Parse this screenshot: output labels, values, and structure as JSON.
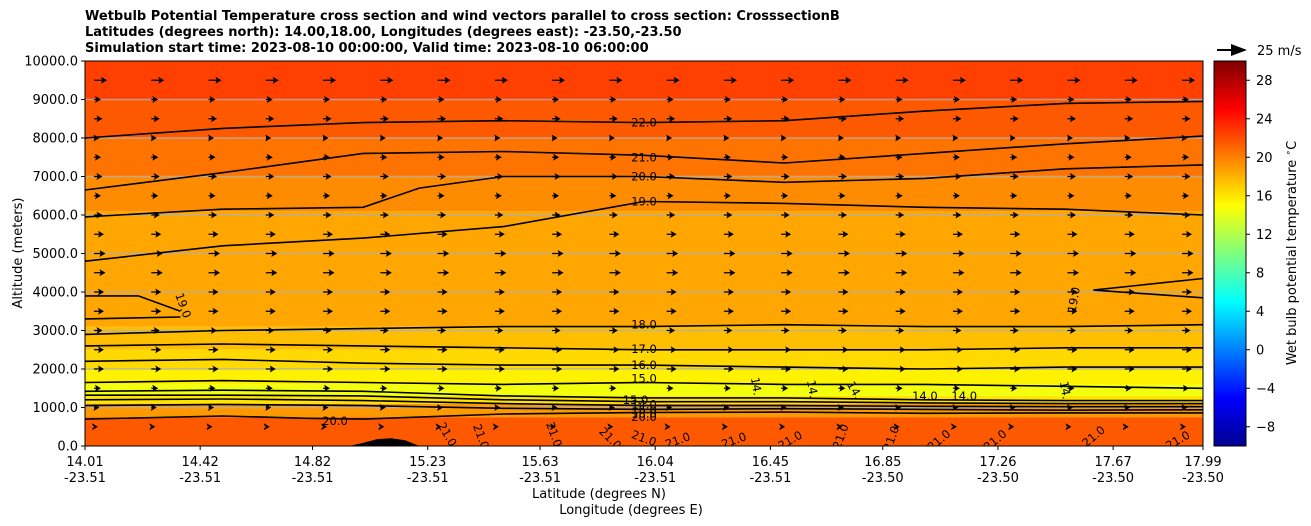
{
  "titles": [
    "Wetbulb Potential Temperature cross section and wind vectors parallel to cross section: CrosssectionB",
    "Latitudes (degrees north): 14.00,18.00, Longitudes (degrees east): -23.50,-23.50",
    "Simulation start time: 2023-08-10 00:00:00, Valid time: 2023-08-10 06:00:00"
  ],
  "chart_data": {
    "type": "heatmap",
    "subtype": "cross-section contour with wind vectors",
    "ylabel": "Altitude (meters)",
    "xlabel_lat": "Latitude (degrees N)",
    "xlabel_lon": "Longitude (degrees E)",
    "ylim": [
      0,
      10000
    ],
    "yticks": [
      "0.0",
      "1000.0",
      "2000.0",
      "3000.0",
      "4000.0",
      "5000.0",
      "6000.0",
      "7000.0",
      "8000.0",
      "9000.0",
      "10000.0"
    ],
    "xticks": [
      {
        "lat": "14.01",
        "lon": "-23.51"
      },
      {
        "lat": "14.42",
        "lon": "-23.51"
      },
      {
        "lat": "14.82",
        "lon": "-23.51"
      },
      {
        "lat": "15.23",
        "lon": "-23.51"
      },
      {
        "lat": "15.63",
        "lon": "-23.51"
      },
      {
        "lat": "16.04",
        "lon": "-23.51"
      },
      {
        "lat": "16.45",
        "lon": "-23.51"
      },
      {
        "lat": "16.85",
        "lon": "-23.50"
      },
      {
        "lat": "17.26",
        "lon": "-23.50"
      },
      {
        "lat": "17.67",
        "lon": "-23.50"
      },
      {
        "lat": "17.99",
        "lon": "-23.50"
      }
    ],
    "xlim": [
      14.01,
      17.99
    ],
    "grid": "horizontal",
    "colorbar": {
      "label": "Wet bulb potential temperature $^\\circ$C",
      "range": [
        -10,
        30
      ],
      "ticks": [
        "28",
        "24",
        "20",
        "16",
        "12",
        "8",
        "4",
        "0",
        "−4",
        "−8"
      ],
      "colormap": "jet"
    },
    "quiver_key": {
      "label": "25 m/s",
      "value": 25
    },
    "temperature_layers": [
      {
        "from": 0,
        "to": 750,
        "value": 21.5
      },
      {
        "from": 750,
        "to": 1100,
        "value": 19
      },
      {
        "from": 1100,
        "to": 1300,
        "value": 16
      },
      {
        "from": 1300,
        "to": 1600,
        "value": 14.5
      },
      {
        "from": 1600,
        "to": 2000,
        "value": 15.5
      },
      {
        "from": 2000,
        "to": 2500,
        "value": 16.5
      },
      {
        "from": 2500,
        "to": 3100,
        "value": 17.5
      },
      {
        "from": 3100,
        "to": 6100,
        "value": 18.5
      },
      {
        "from": 6100,
        "to": 7000,
        "value": 19.5
      },
      {
        "from": 7000,
        "to": 8000,
        "value": 20.5
      },
      {
        "from": 8000,
        "to": 9000,
        "value": 21.5
      },
      {
        "from": 9000,
        "to": 10000,
        "value": 22.5
      }
    ],
    "contours": [
      {
        "level": "22.0",
        "points": [
          [
            14.01,
            8000
          ],
          [
            14.5,
            8250
          ],
          [
            15.0,
            8400
          ],
          [
            15.5,
            8450
          ],
          [
            16.0,
            8400
          ],
          [
            16.5,
            8450
          ],
          [
            17.0,
            8700
          ],
          [
            17.5,
            8900
          ],
          [
            17.99,
            8950
          ]
        ]
      },
      {
        "level": "21.0",
        "points": [
          [
            14.01,
            6650
          ],
          [
            14.5,
            7100
          ],
          [
            15.0,
            7600
          ],
          [
            15.5,
            7650
          ],
          [
            16.0,
            7550
          ],
          [
            16.5,
            7350
          ],
          [
            17.0,
            7600
          ],
          [
            17.5,
            7850
          ],
          [
            17.99,
            8050
          ]
        ]
      },
      {
        "level": "20.0",
        "points": [
          [
            14.01,
            5950
          ],
          [
            14.5,
            6150
          ],
          [
            15.0,
            6200
          ],
          [
            15.2,
            6700
          ],
          [
            15.5,
            7000
          ],
          [
            16.0,
            7000
          ],
          [
            16.5,
            6850
          ],
          [
            17.0,
            6950
          ],
          [
            17.5,
            7200
          ],
          [
            17.99,
            7300
          ]
        ]
      },
      {
        "level": "19.0",
        "points": [
          [
            14.01,
            4800
          ],
          [
            14.5,
            5200
          ],
          [
            15.0,
            5400
          ],
          [
            15.5,
            5700
          ],
          [
            16.0,
            6350
          ],
          [
            16.5,
            6300
          ],
          [
            17.0,
            6200
          ],
          [
            17.5,
            6150
          ],
          [
            17.99,
            6000
          ]
        ]
      },
      {
        "level": "19.0",
        "points": [
          [
            14.01,
            3900
          ],
          [
            14.2,
            3900
          ],
          [
            14.35,
            3500
          ]
        ]
      },
      {
        "level": "19.0",
        "points": [
          [
            14.01,
            3300
          ],
          [
            14.35,
            3350
          ]
        ]
      },
      {
        "level": "19.0",
        "points": [
          [
            17.99,
            4350
          ],
          [
            17.6,
            4050
          ],
          [
            17.99,
            3850
          ]
        ]
      },
      {
        "level": "18.0",
        "points": [
          [
            14.01,
            2900
          ],
          [
            14.5,
            3000
          ],
          [
            15.0,
            3050
          ],
          [
            15.5,
            3100
          ],
          [
            16.0,
            3100
          ],
          [
            16.5,
            3150
          ],
          [
            17.0,
            3100
          ],
          [
            17.5,
            3100
          ],
          [
            17.99,
            3150
          ]
        ]
      },
      {
        "level": "17.0",
        "points": [
          [
            14.01,
            2600
          ],
          [
            14.5,
            2650
          ],
          [
            15.0,
            2600
          ],
          [
            15.5,
            2550
          ],
          [
            16.0,
            2500
          ],
          [
            16.5,
            2500
          ],
          [
            17.0,
            2500
          ],
          [
            17.5,
            2550
          ],
          [
            17.99,
            2550
          ]
        ]
      },
      {
        "level": "16.0",
        "points": [
          [
            14.01,
            2200
          ],
          [
            14.5,
            2250
          ],
          [
            15.0,
            2150
          ],
          [
            15.5,
            2100
          ],
          [
            16.0,
            2100
          ],
          [
            16.5,
            2050
          ],
          [
            17.0,
            2000
          ],
          [
            17.5,
            2050
          ],
          [
            17.99,
            2050
          ]
        ]
      },
      {
        "level": "15.0",
        "points": [
          [
            14.01,
            1650
          ],
          [
            14.5,
            1700
          ],
          [
            15.0,
            1650
          ],
          [
            15.5,
            1600
          ],
          [
            16.0,
            1650
          ],
          [
            16.5,
            1600
          ],
          [
            17.0,
            1600
          ],
          [
            17.5,
            1550
          ],
          [
            17.99,
            1500
          ]
        ]
      },
      {
        "level": "15.0",
        "points": [
          [
            14.01,
            1420
          ],
          [
            14.5,
            1450
          ],
          [
            15.0,
            1420
          ],
          [
            15.5,
            1300
          ],
          [
            16.0,
            1250
          ],
          [
            16.5,
            1250
          ],
          [
            17.0,
            1200
          ],
          [
            17.5,
            1180
          ],
          [
            17.99,
            1180
          ]
        ]
      },
      {
        "level": "14.0",
        "points": [
          [
            14.01,
            1320
          ],
          [
            14.5,
            1320
          ],
          [
            15.0,
            1300
          ],
          [
            15.5,
            1200
          ],
          [
            16.0,
            1150
          ],
          [
            16.5,
            1150
          ],
          [
            17.0,
            1120
          ],
          [
            17.5,
            1100
          ],
          [
            17.99,
            1100
          ]
        ]
      },
      {
        "level": "16.0",
        "points": [
          [
            14.01,
            1200
          ],
          [
            14.5,
            1220
          ],
          [
            15.0,
            1180
          ],
          [
            15.5,
            1100
          ],
          [
            16.0,
            1050
          ],
          [
            16.5,
            1050
          ],
          [
            17.0,
            1030
          ],
          [
            17.5,
            1020
          ],
          [
            17.99,
            1020
          ]
        ]
      },
      {
        "level": "18.0",
        "points": [
          [
            14.01,
            1050
          ],
          [
            14.5,
            1080
          ],
          [
            15.0,
            1050
          ],
          [
            15.5,
            980
          ],
          [
            16.0,
            950
          ],
          [
            16.5,
            970
          ],
          [
            17.0,
            950
          ],
          [
            17.5,
            930
          ],
          [
            17.99,
            940
          ]
        ]
      },
      {
        "level": "20.0",
        "points": [
          [
            14.01,
            700
          ],
          [
            14.5,
            780
          ],
          [
            14.8,
            720
          ],
          [
            15.0,
            700
          ],
          [
            15.5,
            830
          ],
          [
            16.0,
            870
          ],
          [
            16.5,
            880
          ],
          [
            17.0,
            850
          ],
          [
            17.5,
            860
          ],
          [
            17.99,
            860
          ]
        ]
      }
    ],
    "contour_labels": [
      {
        "text": "22.0",
        "x": 16.0,
        "y": 8400,
        "rotate": 0
      },
      {
        "text": "21.0",
        "x": 16.0,
        "y": 7500,
        "rotate": 0
      },
      {
        "text": "20.0",
        "x": 16.0,
        "y": 7000,
        "rotate": 0
      },
      {
        "text": "19.0",
        "x": 16.0,
        "y": 6350,
        "rotate": 0
      },
      {
        "text": "19.0",
        "x": 14.36,
        "y": 3650,
        "rotate": 70
      },
      {
        "text": "19.0",
        "x": 17.53,
        "y": 3800,
        "rotate": -80
      },
      {
        "text": "18.0",
        "x": 16.0,
        "y": 3150,
        "rotate": 0
      },
      {
        "text": "17.0",
        "x": 16.0,
        "y": 2520,
        "rotate": 0
      },
      {
        "text": "16.0",
        "x": 16.0,
        "y": 2100,
        "rotate": 0
      },
      {
        "text": "15.0",
        "x": 16.0,
        "y": 1750,
        "rotate": 0
      },
      {
        "text": "15.0",
        "x": 15.97,
        "y": 1200,
        "rotate": 0
      },
      {
        "text": "14.0",
        "x": 16.0,
        "y": 1080,
        "rotate": 0
      },
      {
        "text": "16.0",
        "x": 16.0,
        "y": 950,
        "rotate": 0
      },
      {
        "text": "18.0",
        "x": 16.0,
        "y": 850,
        "rotate": 0
      },
      {
        "text": "20.0",
        "x": 16.0,
        "y": 750,
        "rotate": 0
      },
      {
        "text": "20.0",
        "x": 14.9,
        "y": 650,
        "rotate": 0
      },
      {
        "text": "14.0",
        "x": 17.0,
        "y": 1300,
        "rotate": 0
      },
      {
        "text": "14.0",
        "x": 17.14,
        "y": 1300,
        "rotate": 0
      },
      {
        "text": "14.",
        "x": 16.4,
        "y": 1550,
        "rotate": 80
      },
      {
        "text": "14.",
        "x": 16.6,
        "y": 1480,
        "rotate": 80
      },
      {
        "text": "14.",
        "x": 16.75,
        "y": 1450,
        "rotate": 60
      },
      {
        "text": "14.",
        "x": 17.5,
        "y": 1450,
        "rotate": 80
      },
      {
        "text": "21.0",
        "x": 15.3,
        "y": 300,
        "rotate": 60
      },
      {
        "text": "21.0",
        "x": 15.42,
        "y": 250,
        "rotate": 70
      },
      {
        "text": "21.0",
        "x": 15.68,
        "y": 300,
        "rotate": 70
      },
      {
        "text": "21.0",
        "x": 15.88,
        "y": 200,
        "rotate": 45
      },
      {
        "text": "21.0",
        "x": 16.0,
        "y": 200,
        "rotate": 20
      },
      {
        "text": "21.0",
        "x": 16.12,
        "y": 150,
        "rotate": -20
      },
      {
        "text": "21.0",
        "x": 16.32,
        "y": 150,
        "rotate": -20
      },
      {
        "text": "21.0",
        "x": 16.52,
        "y": 150,
        "rotate": -30
      },
      {
        "text": "21.0",
        "x": 16.7,
        "y": 250,
        "rotate": -70
      },
      {
        "text": "21.0",
        "x": 16.88,
        "y": 200,
        "rotate": -70
      },
      {
        "text": "21.0",
        "x": 17.05,
        "y": 150,
        "rotate": -40
      },
      {
        "text": "21.0",
        "x": 17.25,
        "y": 150,
        "rotate": -40
      },
      {
        "text": "21.0",
        "x": 17.6,
        "y": 250,
        "rotate": -40
      },
      {
        "text": "21.0",
        "x": 17.9,
        "y": 150,
        "rotate": -30
      }
    ],
    "terrain": [
      [
        14.95,
        0
      ],
      [
        15.0,
        80
      ],
      [
        15.05,
        180
      ],
      [
        15.1,
        200
      ],
      [
        15.15,
        150
      ],
      [
        15.2,
        0
      ]
    ],
    "wind_rows": [
      {
        "altitude": 9500,
        "u": 8
      },
      {
        "altitude": 9000,
        "u": 4
      },
      {
        "altitude": 8500,
        "u": 5
      },
      {
        "altitude": 8000,
        "u": 3
      },
      {
        "altitude": 7500,
        "u": 4
      },
      {
        "altitude": 7000,
        "u": 5
      },
      {
        "altitude": 6500,
        "u": 4
      },
      {
        "altitude": 6000,
        "u": 5
      },
      {
        "altitude": 5500,
        "u": 6
      },
      {
        "altitude": 5000,
        "u": 7
      },
      {
        "altitude": 4500,
        "u": 7
      },
      {
        "altitude": 4000,
        "u": 6
      },
      {
        "altitude": 3500,
        "u": 6
      },
      {
        "altitude": 3000,
        "u": 5
      },
      {
        "altitude": 2500,
        "u": 6
      },
      {
        "altitude": 2000,
        "u": 6
      },
      {
        "altitude": 1500,
        "u": 4
      },
      {
        "altitude": 1000,
        "u": 3
      },
      {
        "altitude": 500,
        "u": 2
      }
    ]
  }
}
